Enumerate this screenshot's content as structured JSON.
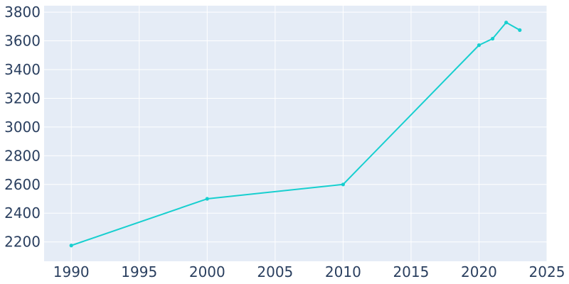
{
  "chart_data": {
    "type": "line",
    "title": "",
    "xlabel": "",
    "ylabel": "",
    "xlim": [
      1988,
      2025
    ],
    "ylim": [
      2065,
      3845
    ],
    "x_ticks": [
      "1990",
      "1995",
      "2000",
      "2005",
      "2010",
      "2015",
      "2020",
      "2025"
    ],
    "y_ticks": [
      "2200",
      "2400",
      "2600",
      "2800",
      "3000",
      "3200",
      "3400",
      "3600",
      "3800"
    ],
    "grid": true,
    "legend": "none",
    "colors": {
      "plot_bg": "#e5ecf6",
      "grid": "#ffffff",
      "line": "#17cfcf",
      "tick_text": "#2a3f5f"
    },
    "series": [
      {
        "x": [
          1990,
          2000,
          2010,
          2020,
          2021,
          2022,
          2023
        ],
        "values": [
          2175,
          2500,
          2600,
          3570,
          3615,
          3728,
          3675
        ]
      }
    ]
  }
}
